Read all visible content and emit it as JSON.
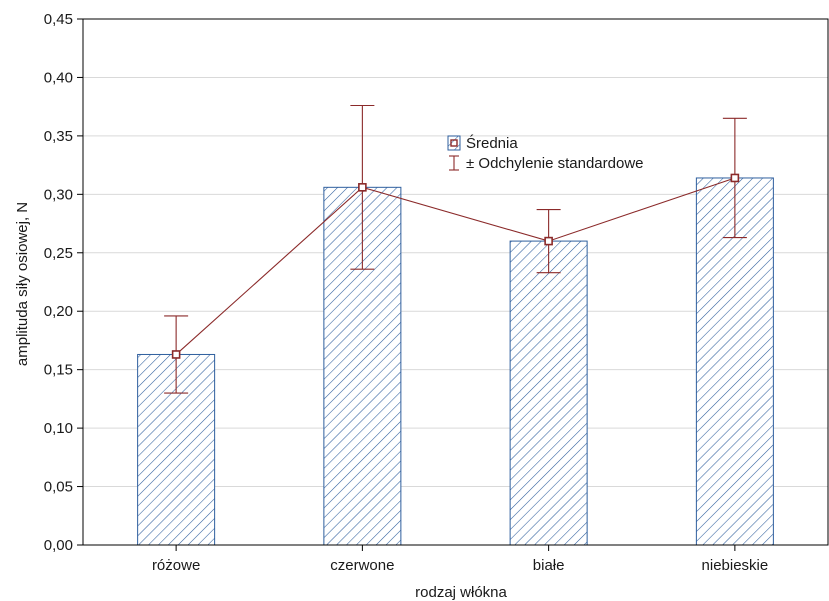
{
  "chart_data": {
    "type": "bar",
    "categories": [
      "różowe",
      "czerwone",
      "białe",
      "niebieskie"
    ],
    "series": [
      {
        "name": "Średnia",
        "values": [
          0.163,
          0.306,
          0.26,
          0.314
        ],
        "std_dev": [
          0.033,
          0.07,
          0.027,
          0.051
        ]
      }
    ],
    "legend": [
      "Średnia",
      "± Odchylenie standardowe"
    ],
    "xlabel": "rodzaj włókna",
    "ylabel": "amplituda siły osiowej, N",
    "ylim": [
      0,
      0.45
    ],
    "yticks": [
      0.0,
      0.05,
      0.1,
      0.15,
      0.2,
      0.25,
      0.3,
      0.35,
      0.4,
      0.45
    ],
    "ytick_labels": [
      "0,00",
      "0,05",
      "0,10",
      "0,15",
      "0,20",
      "0,25",
      "0,30",
      "0,35",
      "0,40",
      "0,45"
    ],
    "grid": true,
    "legend_position": "top-center",
    "bar_fill": "hatched",
    "colors": {
      "bar_edge": "#2f5f9e",
      "hatch": "#2f5f9e",
      "line": "#8b2a2a",
      "grid": "#d9d9d9",
      "axis": "#000000"
    }
  }
}
